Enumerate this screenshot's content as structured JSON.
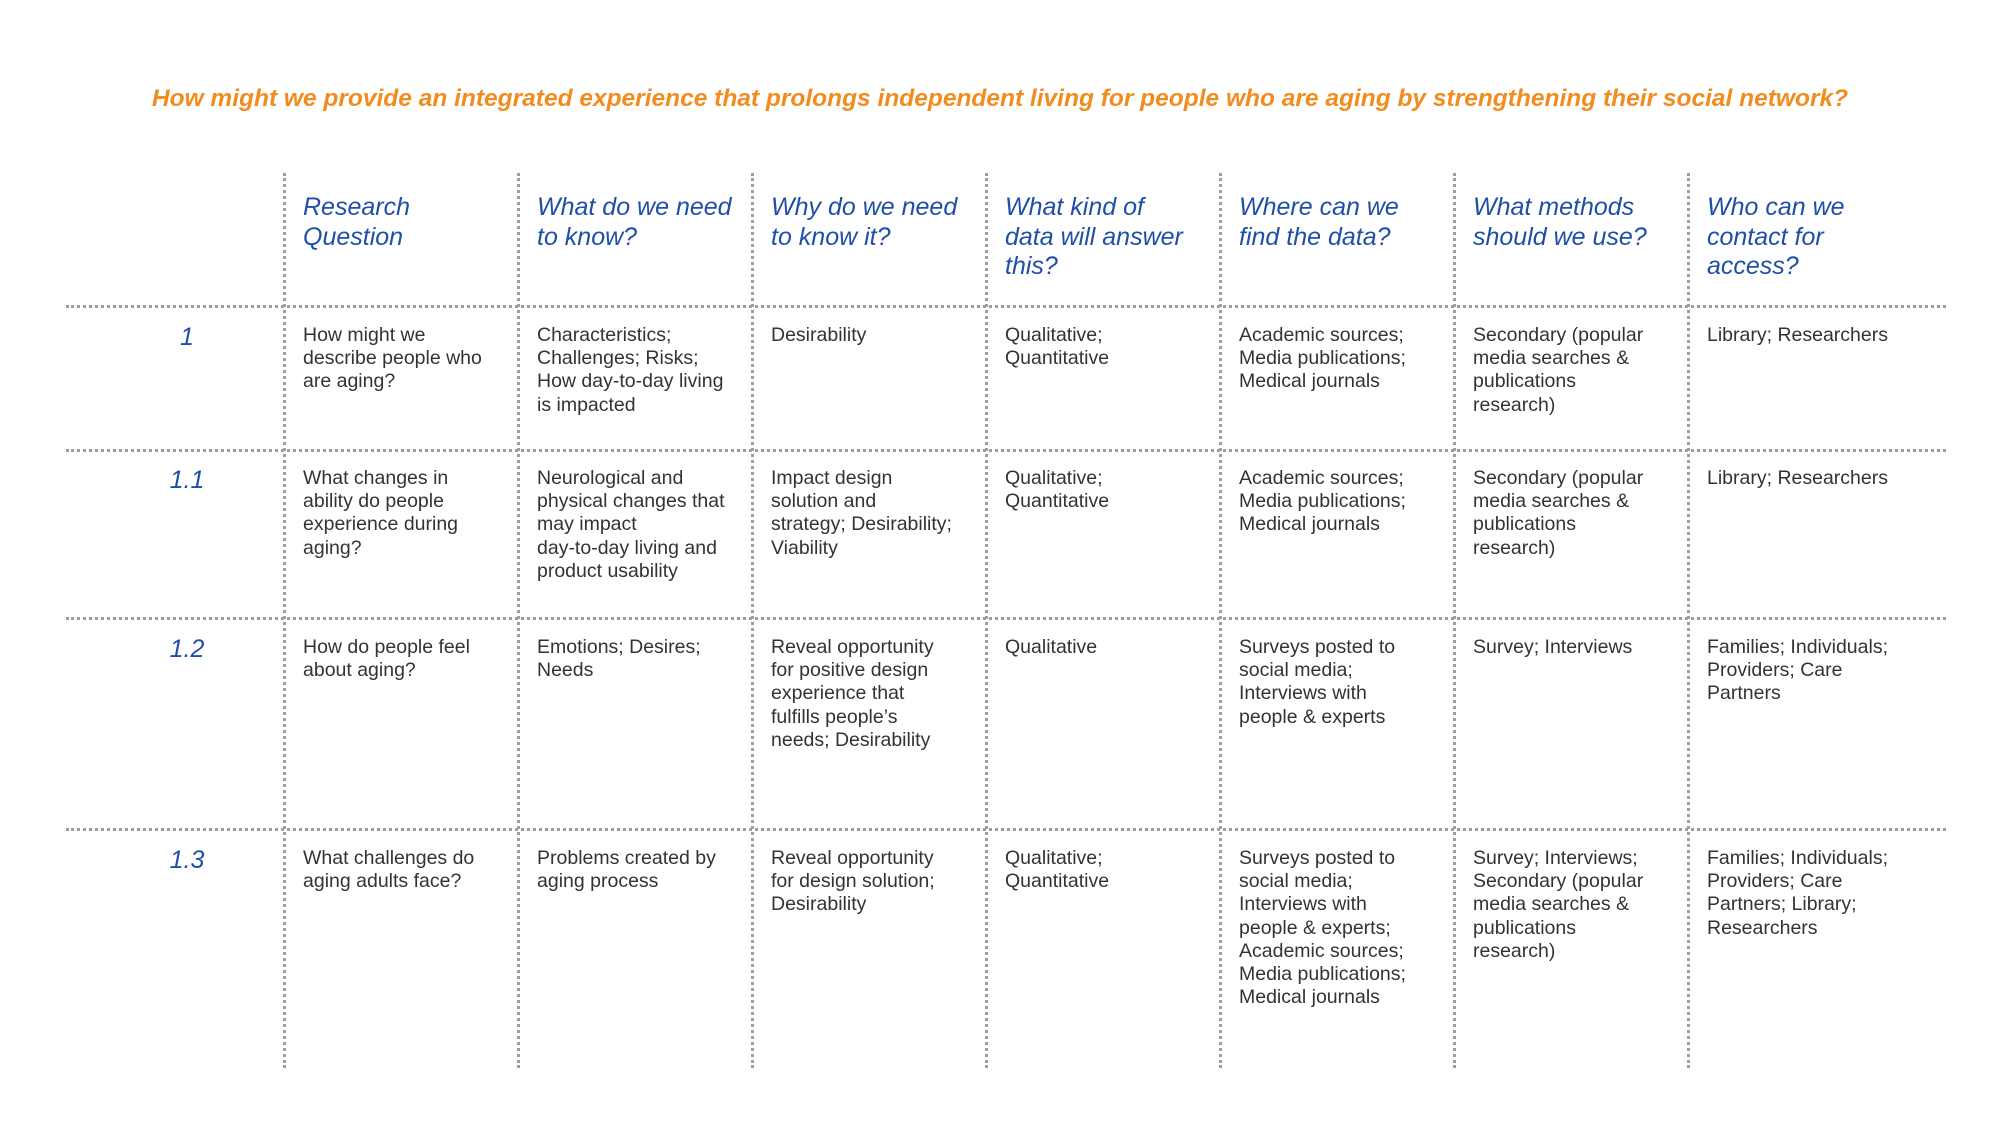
{
  "title": "How might we provide an integrated experience that prolongs independent living for people who are aging by strengthening their social network?",
  "columns": [
    "Research\nQuestion",
    "What do we need\nto know?",
    "Why do we need\nto know it?",
    "What kind of\ndata will answer\nthis?",
    "Where can we\nfind the data?",
    "What methods\nshould we use?",
    "Who can we\ncontact for\naccess?"
  ],
  "rows": [
    {
      "id": "1",
      "cells": [
        "How might we\ndescribe people who\nare aging?",
        "Characteristics;\nChallenges; Risks;\nHow day-to-day living\nis impacted",
        "Desirability",
        "Qualitative;\nQuantitative",
        "Academic sources;\nMedia publications;\nMedical journals",
        "Secondary (popular\nmedia searches &\npublications\nresearch)",
        "Library; Researchers"
      ]
    },
    {
      "id": "1.1",
      "cells": [
        "What changes in\nability do people\nexperience during\naging?",
        "Neurological and\nphysical changes that\nmay impact\nday-to-day living and\nproduct usability",
        "Impact design\nsolution and\nstrategy; Desirability;\nViability",
        "Qualitative;\nQuantitative",
        "Academic sources;\nMedia publications;\nMedical journals",
        "Secondary (popular\nmedia searches &\npublications\nresearch)",
        "Library; Researchers"
      ]
    },
    {
      "id": "1.2",
      "cells": [
        "How do people feel\nabout aging?",
        "Emotions; Desires;\nNeeds",
        "Reveal opportunity\nfor positive design\nexperience that\nfulfills people’s\nneeds; Desirability",
        "Qualitative",
        "Surveys posted to\nsocial media;\nInterviews with\npeople & experts",
        "Survey; Interviews",
        "Families; Individuals;\nProviders; Care\nPartners"
      ]
    },
    {
      "id": "1.3",
      "cells": [
        "What challenges do\naging adults face?",
        "Problems created by\naging process",
        "Reveal opportunity\nfor design solution;\nDesirability",
        "Qualitative;\nQuantitative",
        "Surveys posted to\nsocial media;\nInterviews with\npeople & experts;\nAcademic sources;\nMedia publications;\nMedical journals",
        "Survey; Interviews;\nSecondary (popular\nmedia searches &\npublications\nresearch)",
        "Families; Individuals;\nProviders; Care\nPartners; Library;\nResearchers"
      ]
    }
  ],
  "colors": {
    "title": "#F28C1E",
    "header": "#1F4FA8",
    "body_text": "#333333",
    "dotted_rule": "#9e9e9e"
  }
}
